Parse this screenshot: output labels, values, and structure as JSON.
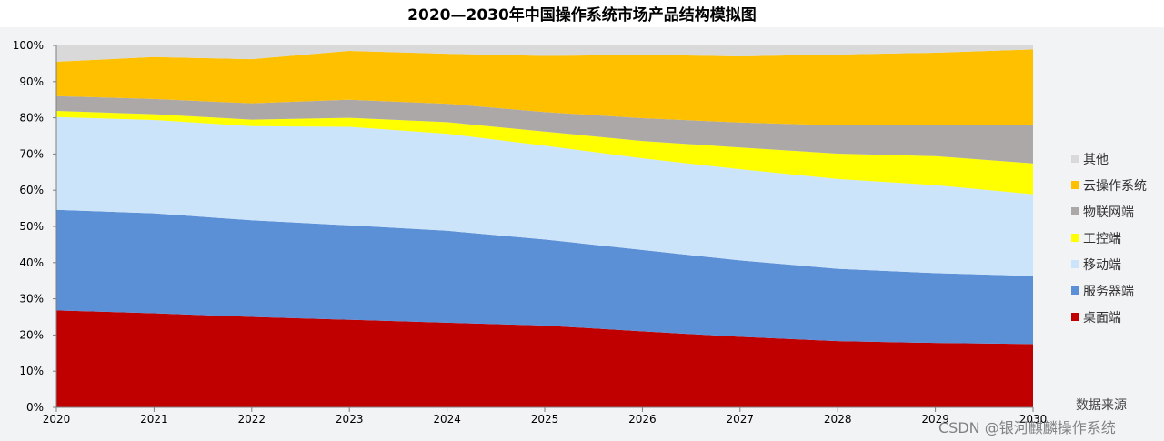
{
  "chart_data": {
    "type": "area",
    "stacked": true,
    "title": "2020—2030年中国操作系统市场产品结构模拟图",
    "x": [
      "2020",
      "2021",
      "2022",
      "2023",
      "2024",
      "2025",
      "2026",
      "2027",
      "2028",
      "2029",
      "2030"
    ],
    "ylim": [
      0,
      100
    ],
    "yticks": [
      "0%",
      "10%",
      "20%",
      "30%",
      "40%",
      "50%",
      "60%",
      "70%",
      "80%",
      "90%",
      "100%"
    ],
    "legend_position": "right",
    "series": [
      {
        "name": "桌面端",
        "color": "#c00000",
        "values": [
          26.8,
          26.0,
          25.0,
          24.2,
          23.4,
          22.6,
          21.0,
          19.5,
          18.3,
          17.8,
          17.5
        ]
      },
      {
        "name": "服务器端",
        "color": "#5b8fd6",
        "values": [
          27.8,
          27.6,
          26.7,
          26.1,
          25.4,
          23.8,
          22.5,
          21.1,
          20.0,
          19.3,
          18.8
        ]
      },
      {
        "name": "移动端",
        "color": "#cce4f9",
        "values": [
          25.6,
          25.8,
          26.0,
          27.2,
          26.8,
          25.9,
          25.3,
          25.2,
          24.8,
          24.3,
          22.6
        ]
      },
      {
        "name": "工控端",
        "color": "#ffff00",
        "values": [
          1.7,
          1.6,
          1.8,
          2.5,
          3.2,
          3.9,
          4.8,
          6.0,
          7.0,
          8.0,
          8.5
        ]
      },
      {
        "name": "物联网端",
        "color": "#ada8a8",
        "values": [
          4.1,
          4.2,
          4.5,
          5.0,
          5.1,
          5.4,
          6.3,
          6.9,
          7.8,
          8.6,
          10.7
        ]
      },
      {
        "name": "云操作系统",
        "color": "#ffc000",
        "values": [
          9.5,
          11.6,
          12.2,
          13.5,
          13.8,
          15.5,
          17.5,
          18.3,
          19.6,
          20.0,
          20.8
        ]
      },
      {
        "name": "其他",
        "color": "#d9d9d9",
        "values": [
          4.5,
          3.2,
          3.8,
          1.5,
          2.3,
          2.9,
          2.6,
          3.0,
          2.5,
          2.0,
          1.1
        ]
      }
    ],
    "legend_order": [
      "其他",
      "云操作系统",
      "物联网端",
      "工控端",
      "移动端",
      "服务器端",
      "桌面端"
    ]
  },
  "source_label": "数据来源",
  "watermark": "CSDN @银河麒麟操作系统"
}
